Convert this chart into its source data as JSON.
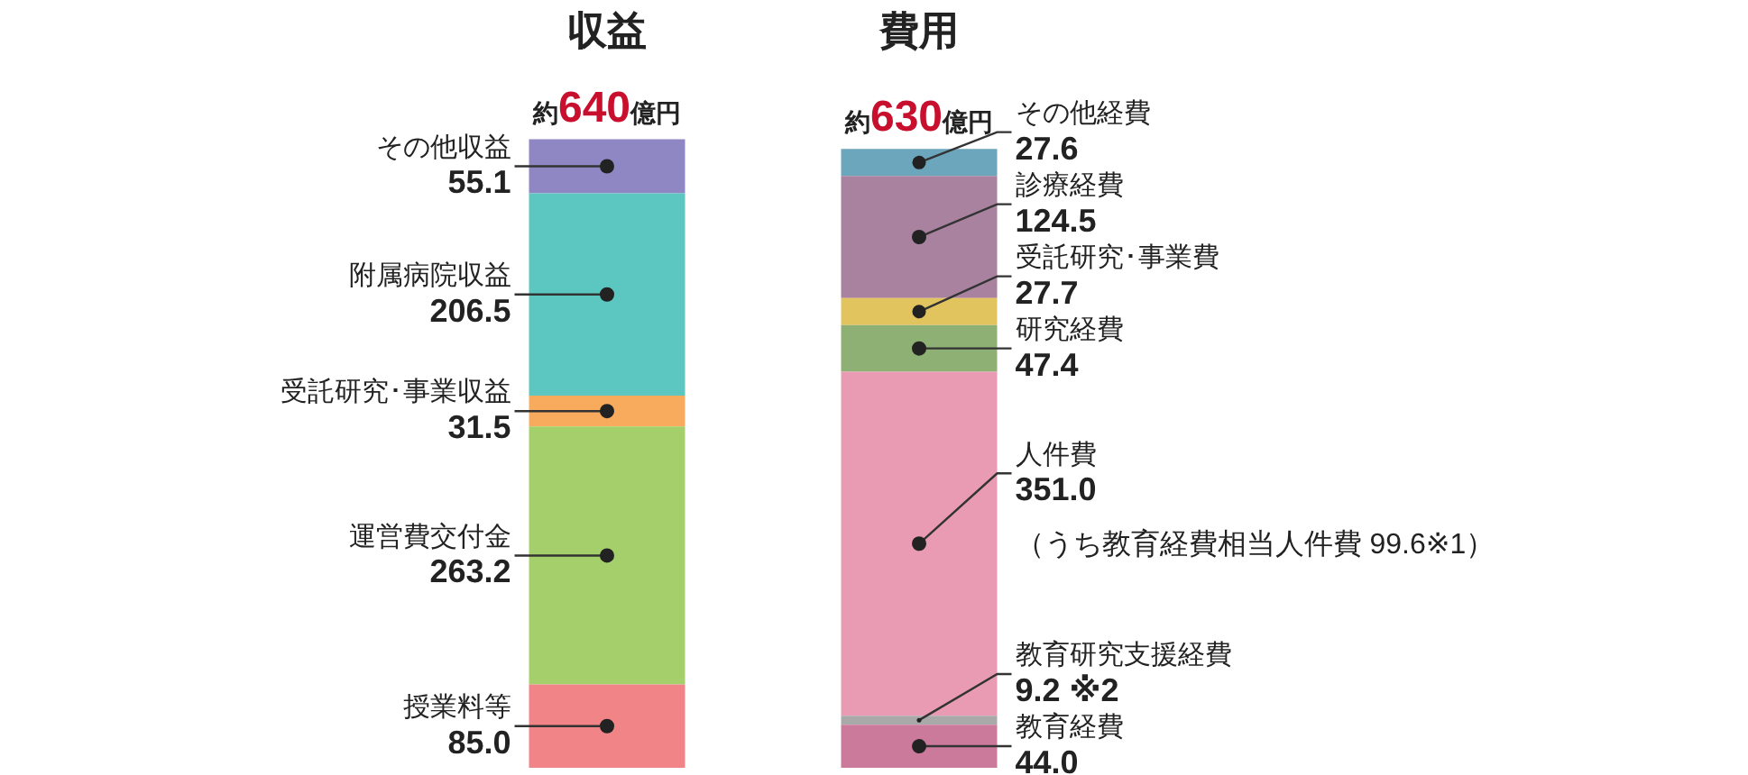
{
  "chart_data": {
    "type": "bar",
    "stacked": true,
    "categories": [
      "収益",
      "費用"
    ],
    "totals": [
      "約640億円",
      "約630億円"
    ],
    "grid": false,
    "legend": false,
    "tick_labels": "x",
    "series": [
      {
        "name": "授業料等",
        "color": "#f08486",
        "values": [
          85.0,
          null
        ],
        "value_labels": [
          "85.0",
          null
        ]
      },
      {
        "name": "運営費交付金",
        "color": "#a4cf6a",
        "values": [
          263.2,
          null
        ],
        "value_labels": [
          "263.2",
          null
        ]
      },
      {
        "name": "受託研究･事業収益",
        "color": "#f8ab5c",
        "values": [
          31.5,
          null
        ],
        "value_labels": [
          "31.5",
          null
        ]
      },
      {
        "name": "附属病院収益",
        "color": "#5cc6c0",
        "values": [
          206.5,
          null
        ],
        "value_labels": [
          "206.5",
          null
        ]
      },
      {
        "name": "その他収益",
        "color": "#8f86c4",
        "values": [
          55.1,
          null
        ],
        "value_labels": [
          "55.1",
          null
        ]
      },
      {
        "name": "教育経費",
        "color": "#cc7a9c",
        "values": [
          null,
          44.0
        ],
        "value_labels": [
          null,
          "44.0"
        ]
      },
      {
        "name": "教育研究支援経費",
        "color": "#a9a9a9",
        "values": [
          null,
          9.2
        ],
        "value_labels": [
          null,
          "9.2 ※2"
        ]
      },
      {
        "name": "人件費",
        "color": "#e89bb2",
        "values": [
          null,
          351.0
        ],
        "value_labels": [
          null,
          "351.0"
        ]
      },
      {
        "name": "研究経費",
        "color": "#8fb074",
        "values": [
          null,
          47.4
        ],
        "value_labels": [
          null,
          "47.4"
        ]
      },
      {
        "name": "受託研究･事業費",
        "color": "#e2c45e",
        "values": [
          null,
          27.7
        ],
        "value_labels": [
          null,
          "27.7"
        ]
      },
      {
        "name": "診療経費",
        "color": "#a8829f",
        "values": [
          null,
          124.5
        ],
        "value_labels": [
          null,
          "124.5"
        ]
      },
      {
        "name": "その他経費",
        "color": "#6ba6bd",
        "values": [
          null,
          27.6
        ],
        "value_labels": [
          null,
          "27.6"
        ]
      }
    ],
    "annotations": [
      "（うち教育経費相当人件費 99.6※1）"
    ]
  }
}
